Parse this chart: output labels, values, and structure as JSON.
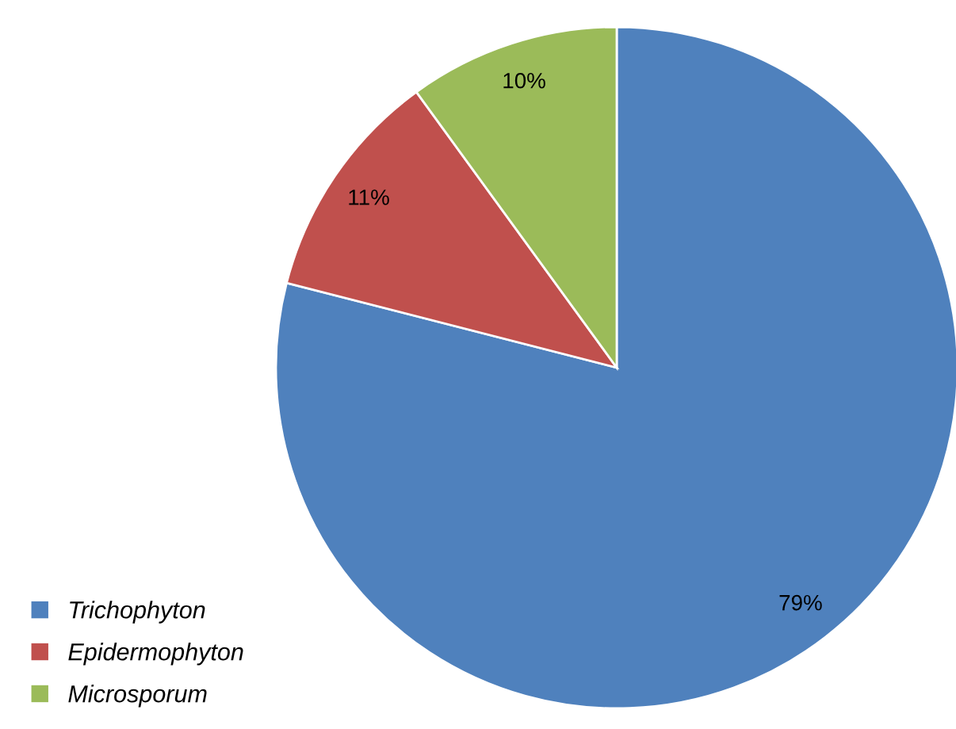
{
  "chart_data": {
    "type": "pie",
    "categories": [
      "Trichophyton",
      "Epidermophyton",
      "Microsporum"
    ],
    "values": [
      79,
      11,
      10
    ],
    "colors": [
      "#4f81bd",
      "#c0504d",
      "#9bbb59"
    ],
    "value_labels": [
      "79%",
      "11%",
      "10%"
    ],
    "legend": "bottom left"
  }
}
